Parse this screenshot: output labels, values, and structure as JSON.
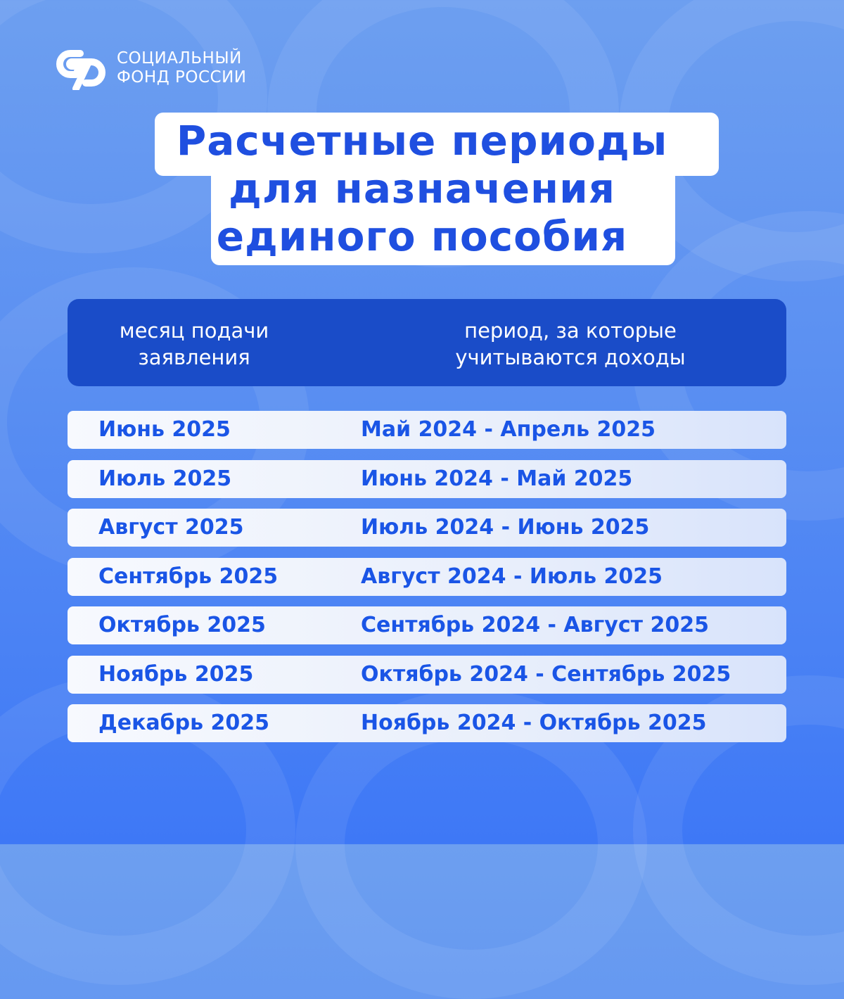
{
  "logo": {
    "line1": "СОЦИАЛЬНЫЙ",
    "line2": "ФОНД РОССИИ",
    "icon": "sfr-logo"
  },
  "title": {
    "line1": "Расчетные периоды",
    "line2": "для назначения",
    "line3": "единого пособия"
  },
  "table": {
    "headers": [
      "месяц подачи заявления",
      "период, за которые учитываются доходы"
    ],
    "rows": [
      [
        "Июнь 2025",
        "Май 2024 - Апрель 2025"
      ],
      [
        "Июль 2025",
        "Июнь 2024 - Май 2025"
      ],
      [
        "Август 2025",
        "Июль 2024 - Июнь 2025"
      ],
      [
        "Сентябрь 2025",
        "Август 2024 - Июль 2025"
      ],
      [
        "Октябрь 2025",
        "Сентябрь 2024 - Август 2025"
      ],
      [
        "Ноябрь 2025",
        "Октябрь 2024 - Сентябрь 2025"
      ],
      [
        "Декабрь 2025",
        "Ноябрь 2024 - Октябрь 2025"
      ]
    ]
  },
  "colors": {
    "accent": "#1f4fe0",
    "header_bg": "#1a4cc8",
    "background": "#5a8ff2"
  }
}
